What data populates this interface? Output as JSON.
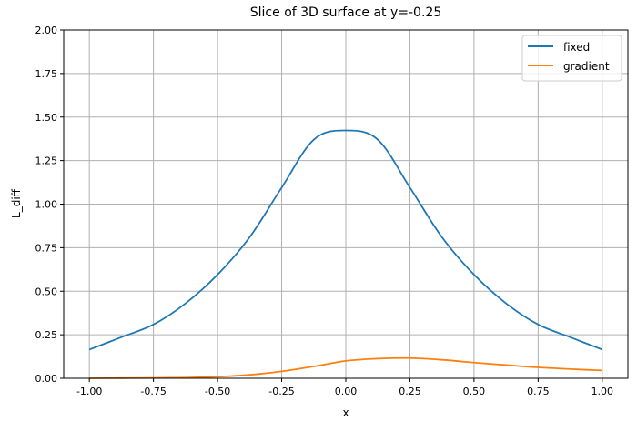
{
  "chart_data": {
    "type": "line",
    "title": "Slice of 3D surface at y=-0.25",
    "xlabel": "x",
    "ylabel": "L_diff",
    "xlim": [
      -1.1,
      1.1
    ],
    "ylim": [
      0,
      2.0
    ],
    "xticks": [
      "-1.00",
      "-0.75",
      "-0.50",
      "-0.25",
      "0.00",
      "0.25",
      "0.50",
      "0.75",
      "1.00"
    ],
    "yticks": [
      "0.00",
      "0.25",
      "0.50",
      "0.75",
      "1.00",
      "1.25",
      "1.50",
      "1.75",
      "2.00"
    ],
    "grid": true,
    "legend_position": "top-right",
    "x": [
      -1.0,
      -0.875,
      -0.75,
      -0.625,
      -0.5,
      -0.375,
      -0.25,
      -0.125,
      0.0,
      0.125,
      0.25,
      0.375,
      0.5,
      0.625,
      0.75,
      0.875,
      1.0
    ],
    "series": [
      {
        "name": "fixed",
        "color": "#1f77b4",
        "values": [
          0.165,
          0.236,
          0.309,
          0.43,
          0.595,
          0.81,
          1.095,
          1.37,
          1.423,
          1.37,
          1.095,
          0.81,
          0.595,
          0.43,
          0.309,
          0.236,
          0.165
        ]
      },
      {
        "name": "gradient",
        "color": "#ff7f0e",
        "values": [
          0.0,
          0.001,
          0.002,
          0.004,
          0.009,
          0.02,
          0.04,
          0.068,
          0.1,
          0.113,
          0.116,
          0.106,
          0.09,
          0.076,
          0.0625,
          0.053,
          0.045
        ]
      }
    ]
  }
}
